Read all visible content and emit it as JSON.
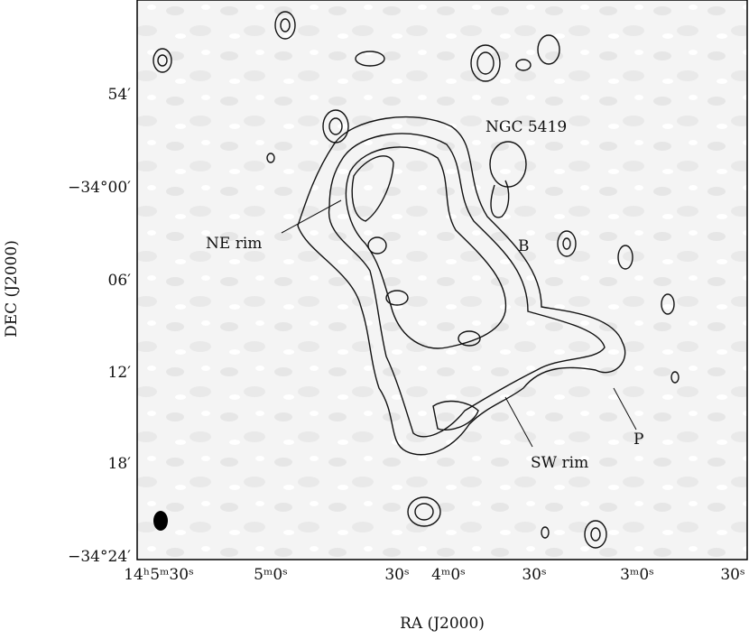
{
  "figure": {
    "x_axis": {
      "label": "RA (J2000)",
      "ticks": [
        "14ʰ5ᵐ30ˢ",
        "5ᵐ0ˢ",
        "30ˢ",
        "4ᵐ0ˢ",
        "30ˢ",
        "3ᵐ0ˢ",
        "30ˢ"
      ]
    },
    "y_axis": {
      "label": "DEC (J2000)",
      "ticks": [
        "54′",
        "−34°00′",
        "06′",
        "12′",
        "18′",
        "−34°24′"
      ]
    },
    "annotations": [
      "NGC 5419",
      "NE rim",
      "B",
      "SW rim",
      "P"
    ]
  }
}
